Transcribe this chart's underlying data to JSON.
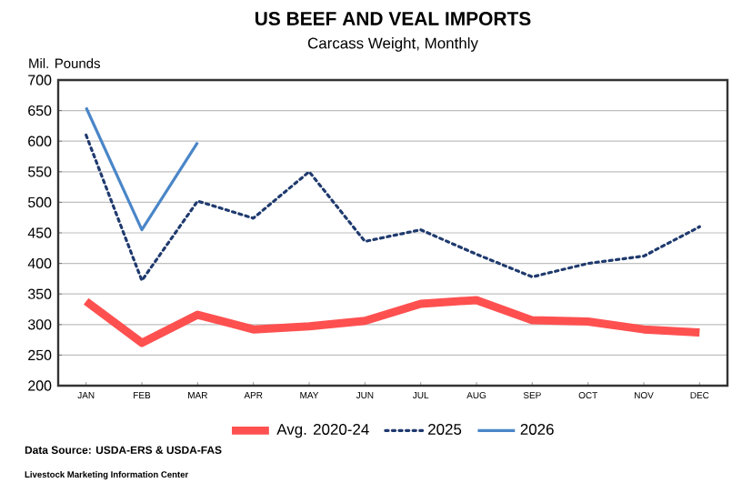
{
  "chart_data": {
    "type": "line",
    "title": "US BEEF AND VEAL IMPORTS",
    "subtitle": "Carcass Weight, Monthly",
    "ylabel": "Mil. Pounds",
    "categories": [
      "JAN",
      "FEB",
      "MAR",
      "APR",
      "MAY",
      "JUN",
      "JUL",
      "AUG",
      "SEP",
      "OCT",
      "NOV",
      "DEC"
    ],
    "series": [
      {
        "name": "Avg. 2020-24",
        "color": "#ff5050",
        "line_style": "solid",
        "values": [
          338,
          270,
          316,
          292,
          297,
          306,
          334,
          340,
          307,
          305,
          292,
          287
        ]
      },
      {
        "name": "2025",
        "color": "#1f3a6e",
        "line_style": "dotted",
        "values": [
          610,
          372,
          502,
          474,
          550,
          436,
          455,
          415,
          378,
          400,
          412,
          460
        ]
      },
      {
        "name": "2026",
        "color": "#4a86c8",
        "line_style": "solid",
        "values": [
          655,
          455,
          598,
          null,
          null,
          null,
          null,
          null,
          null,
          null,
          null,
          null
        ]
      }
    ],
    "ylim": [
      200,
      700
    ],
    "yticks": [
      200,
      250,
      300,
      350,
      400,
      450,
      500,
      550,
      600,
      650,
      700
    ],
    "grid": "y",
    "legend": "bottom",
    "marker": "none",
    "annotations": [
      "Data Source:  USDA-ERS & USDA-FAS",
      "Livestock Marketing Information Center"
    ]
  }
}
